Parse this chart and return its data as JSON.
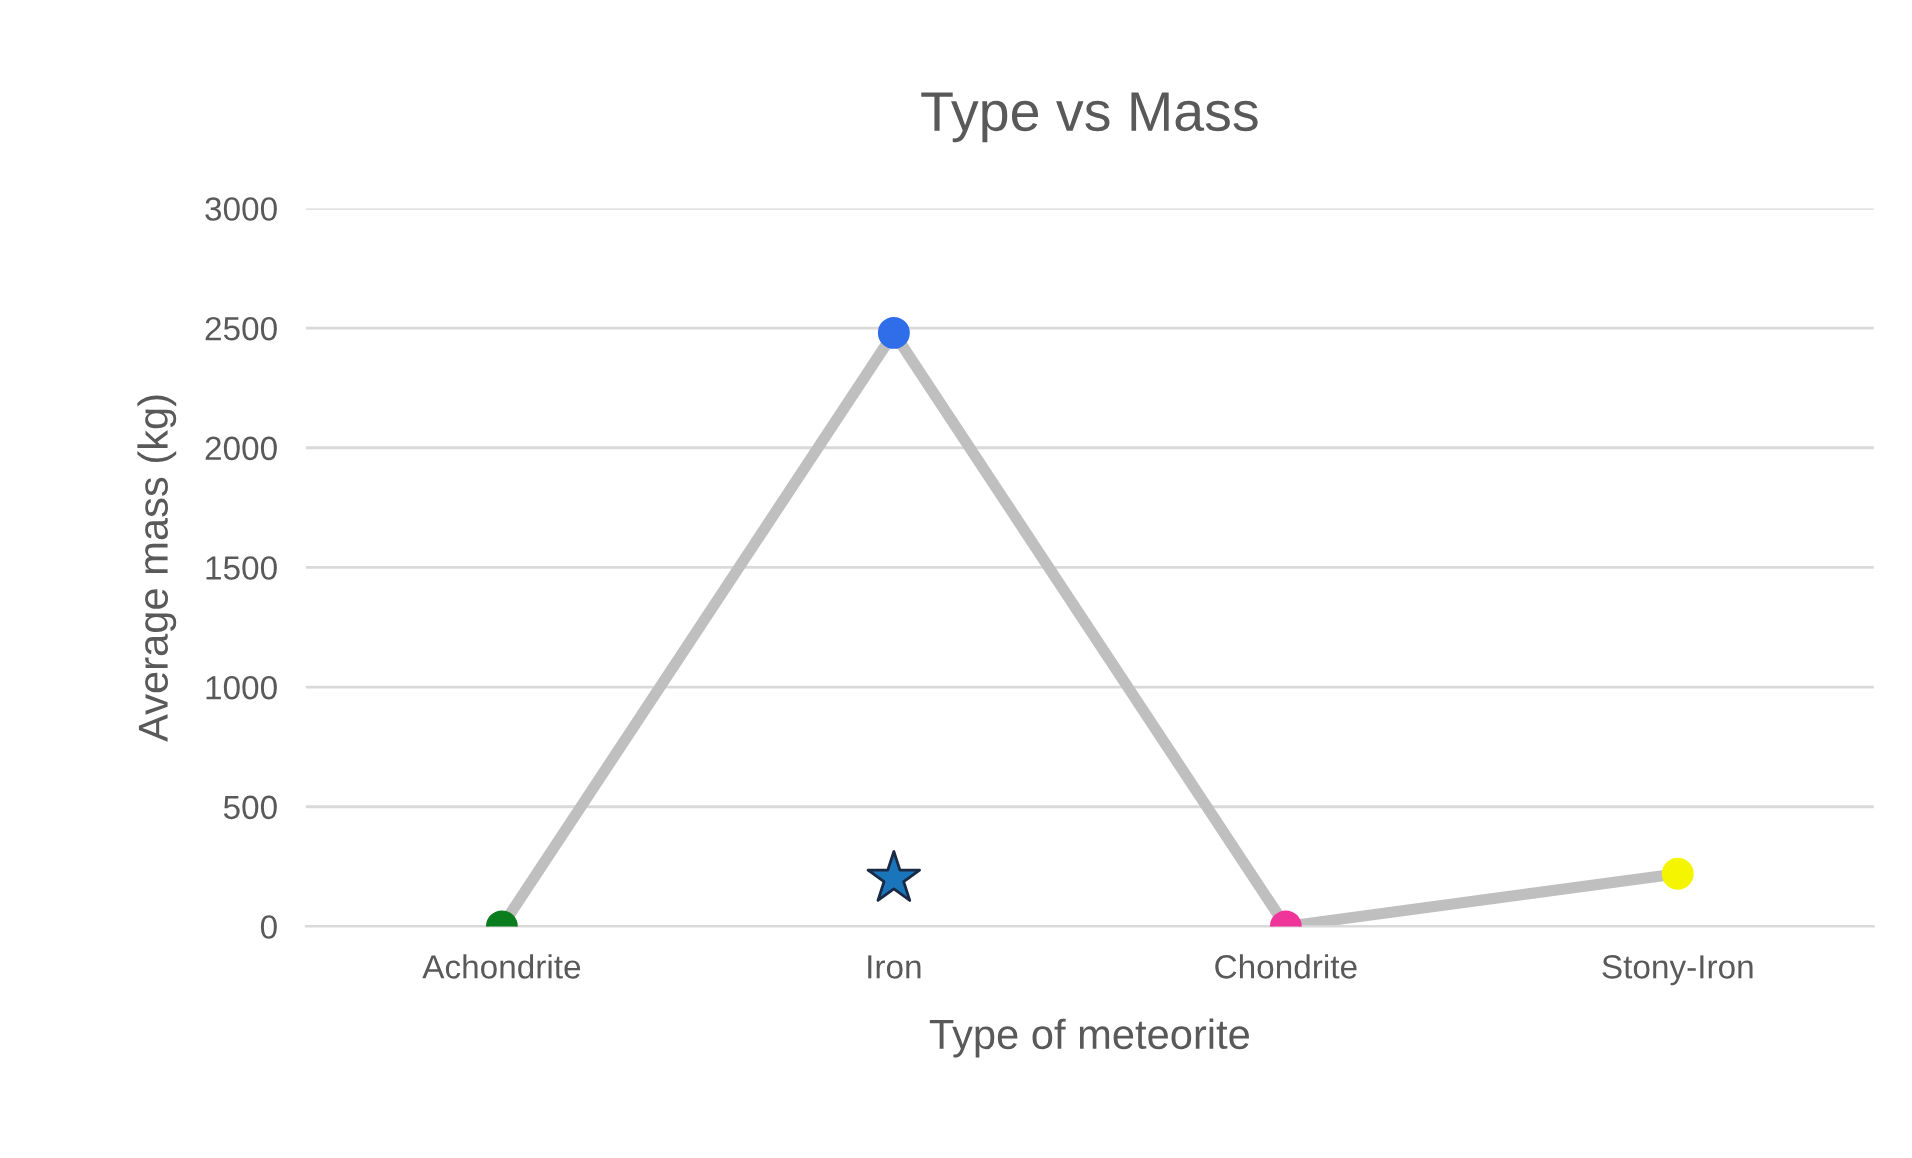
{
  "chart_data": {
    "type": "line",
    "title": "Type vs Mass",
    "xlabel": "Type of meteorite",
    "ylabel": "Average mass (kg)",
    "categories": [
      "Achondrite",
      "Iron",
      "Chondrite",
      "Stony-Iron"
    ],
    "series": [
      {
        "color": "#bfbfbf",
        "colors": [
          "#0a7d1e",
          "#2f6ee8",
          "#f0359a",
          "#f5f500"
        ],
        "values": [
          0,
          2480,
          0,
          220
        ],
        "marker": "circle",
        "line_style": "solid"
      },
      {
        "type": "scatter",
        "x": [
          "Iron"
        ],
        "color": "#1b75bb",
        "values": [
          200
        ],
        "marker": "star"
      }
    ],
    "ylim": [
      0,
      3000
    ],
    "yticks": [
      0,
      500,
      1000,
      1500,
      2000,
      2500,
      3000
    ],
    "grid": "y"
  }
}
